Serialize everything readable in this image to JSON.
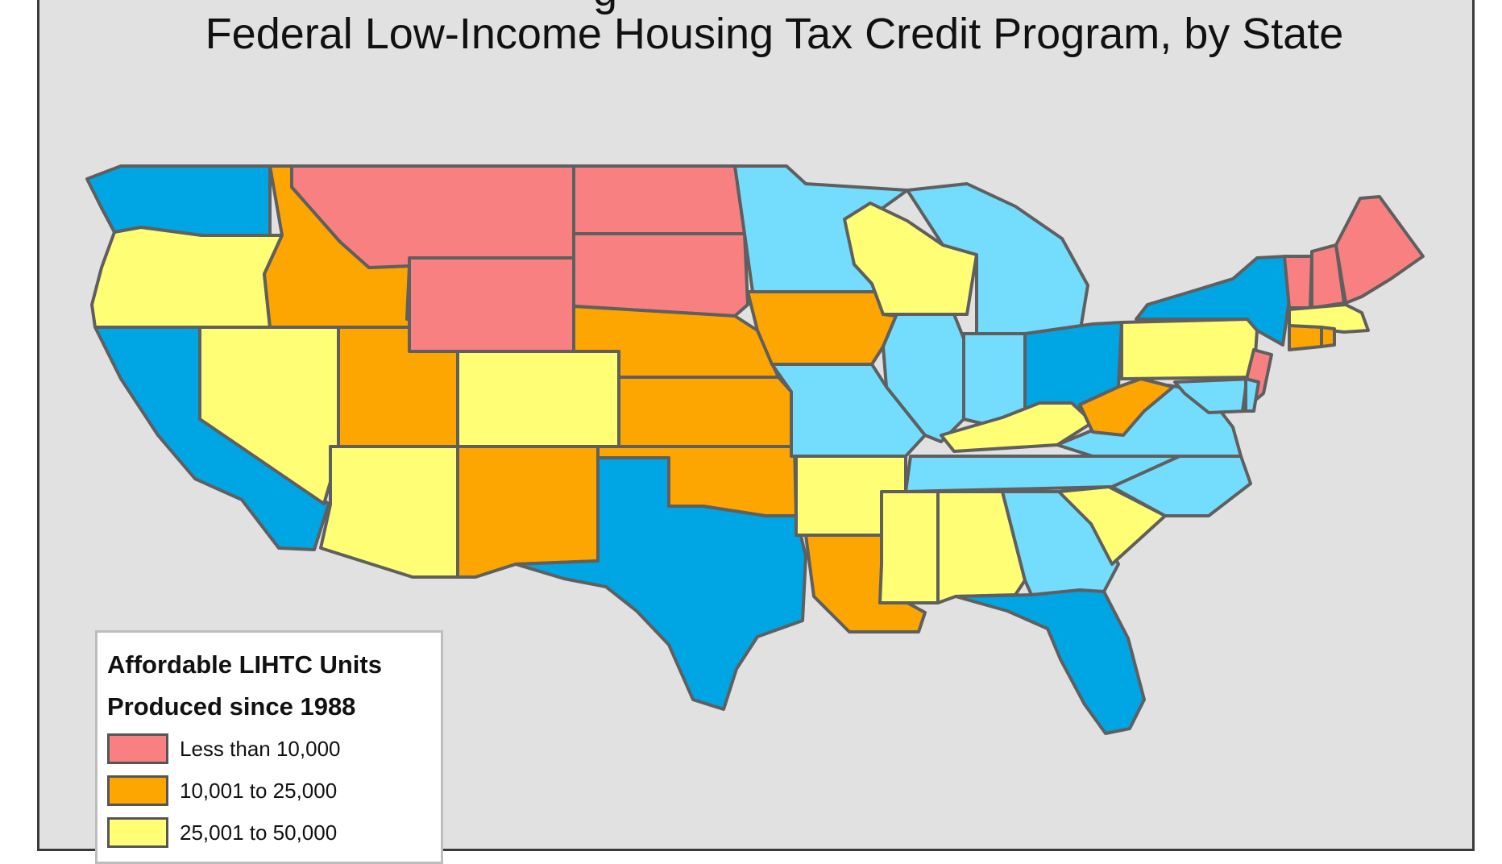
{
  "title_line1_partial": "g",
  "title": "Federal Low-Income Housing Tax Credit Program, by State",
  "colors": {
    "lt10k": "#f98080",
    "10to25k": "#fda500",
    "25to50k": "#fffe74",
    "light_blue": "#74ddfe",
    "dark_blue": "#00a5e3",
    "background": "#e1e1e1",
    "border": "#5f5f5f"
  },
  "legend": {
    "title_line1": "Affordable LIHTC Units",
    "title_line2": "Produced since 1988",
    "items": [
      {
        "label": "Less than 10,000",
        "color": "#f98080"
      },
      {
        "label": "10,001 to 25,000",
        "color": "#fda500"
      },
      {
        "label": "25,001 to 50,000",
        "color": "#fffe74"
      }
    ]
  }
}
